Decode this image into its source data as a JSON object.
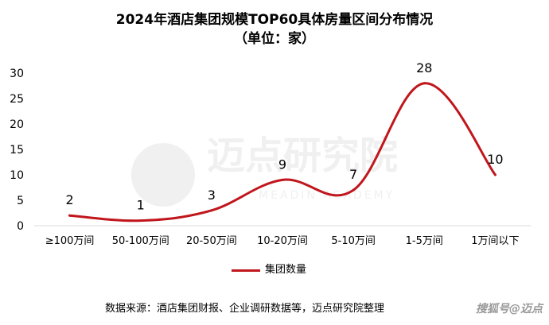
{
  "chart_data": {
    "type": "line",
    "title": "2024年酒店集团规模TOP60具体房量区间分布情况",
    "subtitle": "（单位：家）",
    "categories": [
      "≥100万间",
      "50-100万间",
      "20-50万间",
      "10-20万间",
      "5-10万间",
      "1-5万间",
      "1万间以下"
    ],
    "series": [
      {
        "name": "集团数量",
        "values": [
          2,
          1,
          3,
          9,
          7,
          28,
          10
        ],
        "color": "#c0161c"
      }
    ],
    "yticks": [
      0,
      5,
      10,
      15,
      20,
      25,
      30
    ],
    "ylim": [
      0,
      30
    ],
    "legend": "bottom",
    "grid": false
  },
  "footer": {
    "source": "数据来源：酒店集团财报、企业调研数据等，迈点研究院整理",
    "watermark": "搜狐号@迈点"
  },
  "background_watermark": {
    "text": "迈点研究院",
    "subtext": "MEADIN ACADEMY"
  }
}
